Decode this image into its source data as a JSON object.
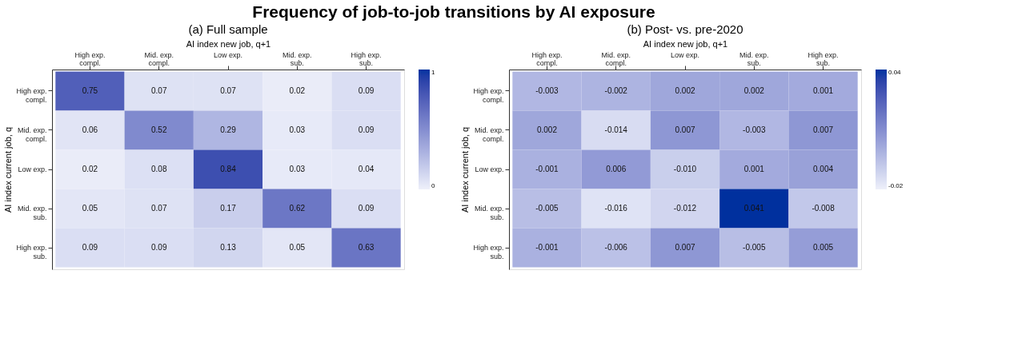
{
  "chart_data": [
    {
      "type": "heatmap",
      "title": "Frequency of job-to-job transitions by AI exposure",
      "subtitle": "(a)   Full sample",
      "xlabel": "AI index new job, q+1",
      "ylabel": "AI index current job, q",
      "categories": [
        "High exp.\ncompl.",
        "Mid. exp.\ncompl.",
        "Low exp.",
        "Mid. exp.\nsub.",
        "High exp.\nsub."
      ],
      "y_categories": [
        "High exp.\ncompl.",
        "Mid. exp.\ncompl.",
        "Low exp.",
        "Mid. exp.\nsub.",
        "High exp.\nsub."
      ],
      "cells": [
        [
          0.75,
          0.07,
          0.07,
          0.02,
          0.09
        ],
        [
          0.06,
          0.52,
          0.29,
          0.03,
          0.09
        ],
        [
          0.02,
          0.08,
          0.84,
          0.03,
          0.04
        ],
        [
          0.05,
          0.07,
          0.17,
          0.62,
          0.09
        ],
        [
          0.09,
          0.09,
          0.13,
          0.05,
          0.63
        ]
      ],
      "data_labels": true,
      "clim": [
        0,
        1
      ],
      "cticks": [
        0,
        1
      ]
    },
    {
      "type": "heatmap",
      "subtitle": "(b)   Post- vs. pre-2020",
      "xlabel": "AI index new job, q+1",
      "ylabel": "AI index current job, q",
      "categories": [
        "High exp.\ncompl.",
        "Mid. exp.\ncompl.",
        "Low exp.",
        "Mid. exp.\nsub.",
        "High exp.\nsub."
      ],
      "y_categories": [
        "High exp.\ncompl.",
        "Mid. exp.\ncompl.",
        "Low exp.",
        "Mid. exp.\nsub.",
        "High exp.\nsub."
      ],
      "cells": [
        [
          -0.003,
          -0.002,
          0.002,
          0.002,
          0.001
        ],
        [
          0.002,
          -0.014,
          0.007,
          -0.003,
          0.007
        ],
        [
          -0.001,
          0.006,
          -0.01,
          0.001,
          0.004
        ],
        [
          -0.005,
          -0.016,
          -0.012,
          0.041,
          -0.008
        ],
        [
          -0.001,
          -0.006,
          0.007,
          -0.005,
          0.005
        ]
      ],
      "cell_labels": [
        [
          "-0.003",
          "-0.002",
          "0.002",
          "0.002",
          "0.001"
        ],
        [
          "0.002",
          "-0.014",
          "0.007",
          "-0.003",
          "0.007"
        ],
        [
          "-0.001",
          "0.006",
          "-0.010",
          "0.001",
          "0.004"
        ],
        [
          "-0.005",
          "-0.016",
          "-0.012",
          "0.041",
          "-0.008"
        ],
        [
          "-0.001",
          "-0.006",
          "0.007",
          "-0.005",
          "0.005"
        ]
      ],
      "clim": [
        -0.02,
        0.04
      ],
      "cticks": [
        -0.02,
        0.04
      ]
    }
  ]
}
